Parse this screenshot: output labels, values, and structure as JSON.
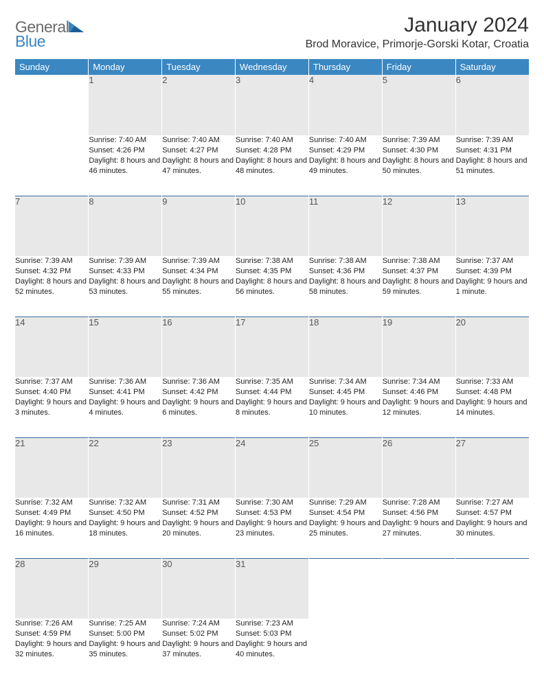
{
  "logo": {
    "line1": "General",
    "line2": "Blue"
  },
  "title": "January 2024",
  "location": "Brod Moravice, Primorje-Gorski Kotar, Croatia",
  "colors": {
    "header_bg": "#3a87c2",
    "header_text": "#ffffff",
    "daynum_bg": "#e8e8e8",
    "daynum_text": "#555555",
    "rule": "#3a6a9a",
    "body_text": "#222222",
    "logo_gray": "#6a6a6a",
    "logo_blue": "#3a87c2"
  },
  "weekdays": [
    "Sunday",
    "Monday",
    "Tuesday",
    "Wednesday",
    "Thursday",
    "Friday",
    "Saturday"
  ],
  "weeks": [
    [
      null,
      {
        "n": "1",
        "sr": "7:40 AM",
        "ss": "4:26 PM",
        "dl": "8 hours and 46 minutes."
      },
      {
        "n": "2",
        "sr": "7:40 AM",
        "ss": "4:27 PM",
        "dl": "8 hours and 47 minutes."
      },
      {
        "n": "3",
        "sr": "7:40 AM",
        "ss": "4:28 PM",
        "dl": "8 hours and 48 minutes."
      },
      {
        "n": "4",
        "sr": "7:40 AM",
        "ss": "4:29 PM",
        "dl": "8 hours and 49 minutes."
      },
      {
        "n": "5",
        "sr": "7:39 AM",
        "ss": "4:30 PM",
        "dl": "8 hours and 50 minutes."
      },
      {
        "n": "6",
        "sr": "7:39 AM",
        "ss": "4:31 PM",
        "dl": "8 hours and 51 minutes."
      }
    ],
    [
      {
        "n": "7",
        "sr": "7:39 AM",
        "ss": "4:32 PM",
        "dl": "8 hours and 52 minutes."
      },
      {
        "n": "8",
        "sr": "7:39 AM",
        "ss": "4:33 PM",
        "dl": "8 hours and 53 minutes."
      },
      {
        "n": "9",
        "sr": "7:39 AM",
        "ss": "4:34 PM",
        "dl": "8 hours and 55 minutes."
      },
      {
        "n": "10",
        "sr": "7:38 AM",
        "ss": "4:35 PM",
        "dl": "8 hours and 56 minutes."
      },
      {
        "n": "11",
        "sr": "7:38 AM",
        "ss": "4:36 PM",
        "dl": "8 hours and 58 minutes."
      },
      {
        "n": "12",
        "sr": "7:38 AM",
        "ss": "4:37 PM",
        "dl": "8 hours and 59 minutes."
      },
      {
        "n": "13",
        "sr": "7:37 AM",
        "ss": "4:39 PM",
        "dl": "9 hours and 1 minute."
      }
    ],
    [
      {
        "n": "14",
        "sr": "7:37 AM",
        "ss": "4:40 PM",
        "dl": "9 hours and 3 minutes."
      },
      {
        "n": "15",
        "sr": "7:36 AM",
        "ss": "4:41 PM",
        "dl": "9 hours and 4 minutes."
      },
      {
        "n": "16",
        "sr": "7:36 AM",
        "ss": "4:42 PM",
        "dl": "9 hours and 6 minutes."
      },
      {
        "n": "17",
        "sr": "7:35 AM",
        "ss": "4:44 PM",
        "dl": "9 hours and 8 minutes."
      },
      {
        "n": "18",
        "sr": "7:34 AM",
        "ss": "4:45 PM",
        "dl": "9 hours and 10 minutes."
      },
      {
        "n": "19",
        "sr": "7:34 AM",
        "ss": "4:46 PM",
        "dl": "9 hours and 12 minutes."
      },
      {
        "n": "20",
        "sr": "7:33 AM",
        "ss": "4:48 PM",
        "dl": "9 hours and 14 minutes."
      }
    ],
    [
      {
        "n": "21",
        "sr": "7:32 AM",
        "ss": "4:49 PM",
        "dl": "9 hours and 16 minutes."
      },
      {
        "n": "22",
        "sr": "7:32 AM",
        "ss": "4:50 PM",
        "dl": "9 hours and 18 minutes."
      },
      {
        "n": "23",
        "sr": "7:31 AM",
        "ss": "4:52 PM",
        "dl": "9 hours and 20 minutes."
      },
      {
        "n": "24",
        "sr": "7:30 AM",
        "ss": "4:53 PM",
        "dl": "9 hours and 23 minutes."
      },
      {
        "n": "25",
        "sr": "7:29 AM",
        "ss": "4:54 PM",
        "dl": "9 hours and 25 minutes."
      },
      {
        "n": "26",
        "sr": "7:28 AM",
        "ss": "4:56 PM",
        "dl": "9 hours and 27 minutes."
      },
      {
        "n": "27",
        "sr": "7:27 AM",
        "ss": "4:57 PM",
        "dl": "9 hours and 30 minutes."
      }
    ],
    [
      {
        "n": "28",
        "sr": "7:26 AM",
        "ss": "4:59 PM",
        "dl": "9 hours and 32 minutes."
      },
      {
        "n": "29",
        "sr": "7:25 AM",
        "ss": "5:00 PM",
        "dl": "9 hours and 35 minutes."
      },
      {
        "n": "30",
        "sr": "7:24 AM",
        "ss": "5:02 PM",
        "dl": "9 hours and 37 minutes."
      },
      {
        "n": "31",
        "sr": "7:23 AM",
        "ss": "5:03 PM",
        "dl": "9 hours and 40 minutes."
      },
      null,
      null,
      null
    ]
  ],
  "labels": {
    "sunrise": "Sunrise:",
    "sunset": "Sunset:",
    "daylight": "Daylight:"
  }
}
